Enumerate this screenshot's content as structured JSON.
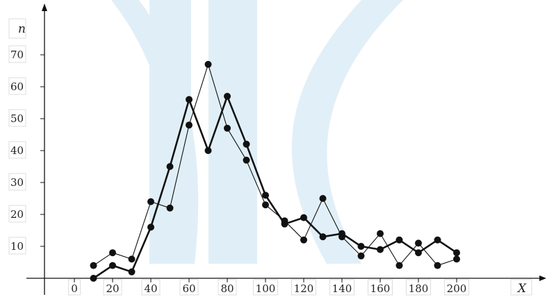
{
  "chart_data": {
    "type": "line",
    "title": "",
    "xlabel": "X",
    "ylabel": "n",
    "xlim": [
      -10,
      210
    ],
    "ylim": [
      0,
      75
    ],
    "x_ticks": [
      0,
      20,
      40,
      60,
      80,
      100,
      120,
      140,
      160,
      180,
      200
    ],
    "y_ticks": [
      10,
      20,
      30,
      40,
      50,
      60,
      70
    ],
    "grid": false,
    "legend": "none",
    "series": [
      {
        "style": "thin",
        "color": "#111111",
        "x": [
          10,
          20,
          30,
          40,
          50,
          60,
          70,
          80,
          90,
          100,
          110,
          120,
          130,
          140,
          150,
          160,
          170,
          180,
          190,
          200
        ],
        "y": [
          4,
          8,
          6,
          24,
          22,
          48,
          67,
          47,
          37,
          23,
          18,
          12,
          25,
          13,
          7,
          14,
          4,
          11,
          4,
          6
        ]
      },
      {
        "style": "thick",
        "color": "#111111",
        "x": [
          10,
          20,
          30,
          40,
          50,
          60,
          70,
          80,
          90,
          100,
          110,
          120,
          130,
          140,
          150,
          160,
          170,
          180,
          190,
          200
        ],
        "y": [
          0,
          4,
          2,
          16,
          35,
          56,
          40,
          57,
          42,
          26,
          17,
          19,
          13,
          14,
          10,
          9,
          12,
          8,
          12,
          8
        ]
      }
    ]
  }
}
